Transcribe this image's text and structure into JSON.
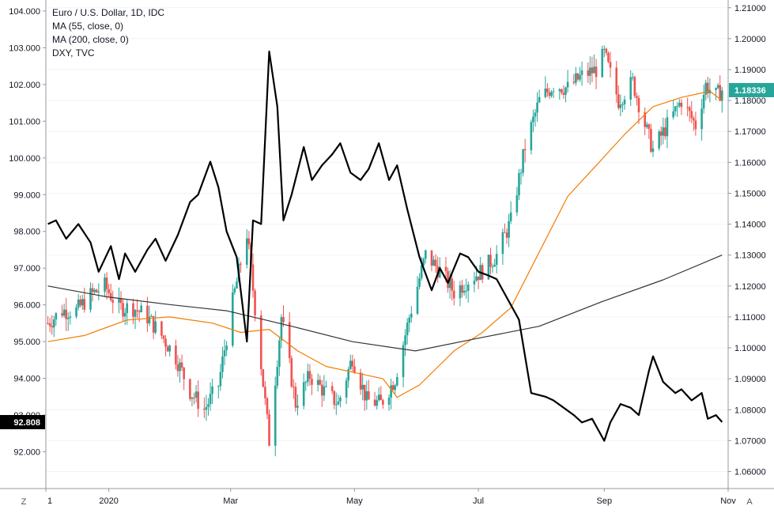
{
  "legend": {
    "main": "Euro / U.S. Dollar, 1D, IDC",
    "ma55": "MA (55, close, 0)",
    "ma200": "MA (200, close, 0)",
    "overlay": "DXY, TVC"
  },
  "corner_left": "Z",
  "corner_right": "A",
  "colors": {
    "up": "#26a69a",
    "down": "#ef5350",
    "ma55": "#f57c00",
    "ma200": "#333333",
    "dxy": "#000000",
    "eur_badge": "#26a69a",
    "dxy_badge": "#000000",
    "axis": "#131722",
    "grid": "#f0f3fa"
  },
  "chart_data": {
    "type": "line",
    "title": "Euro / U.S. Dollar, 1D, IDC",
    "x_axis": {
      "ticks": [
        "1",
        "2020",
        "Mar",
        "May",
        "Jul",
        "Sep",
        "Nov"
      ],
      "range": [
        "2019-12-01",
        "2020-11-01"
      ]
    },
    "left_axis": {
      "series": "DXY, TVC",
      "range": [
        91.0,
        104.3
      ],
      "ticks": [
        "92.000",
        "93.000",
        "94.000",
        "95.000",
        "96.000",
        "97.000",
        "98.000",
        "99.000",
        "100.000",
        "101.000",
        "102.000",
        "103.000",
        "104.000"
      ],
      "last_value_label": "92.808"
    },
    "right_axis": {
      "series": "Euro / U.S. Dollar, 1D, IDC",
      "range": [
        1.0545,
        1.2125
      ],
      "ticks": [
        "1.06000",
        "1.07000",
        "1.08000",
        "1.09000",
        "1.10000",
        "1.11000",
        "1.12000",
        "1.13000",
        "1.14000",
        "1.15000",
        "1.16000",
        "1.17000",
        "1.18000",
        "1.19000",
        "1.20000",
        "1.21000"
      ],
      "last_value_label": "1.18336"
    },
    "series": [
      {
        "name": "Euro / U.S. Dollar, 1D, IDC",
        "kind": "candlestick-close-path",
        "points": [
          [
            "2019-12-02",
            1.108
          ],
          [
            "2019-12-09",
            1.112
          ],
          [
            "2019-12-16",
            1.112
          ],
          [
            "2019-12-23",
            1.117
          ],
          [
            "2019-12-30",
            1.12
          ],
          [
            "2020-01-06",
            1.113
          ],
          [
            "2020-01-13",
            1.113
          ],
          [
            "2020-01-20",
            1.11
          ],
          [
            "2020-01-27",
            1.104
          ],
          [
            "2020-02-03",
            1.097
          ],
          [
            "2020-02-10",
            1.086
          ],
          [
            "2020-02-17",
            1.08
          ],
          [
            "2020-02-24",
            1.088
          ],
          [
            "2020-03-02",
            1.115
          ],
          [
            "2020-03-09",
            1.137
          ],
          [
            "2020-03-13",
            1.113
          ],
          [
            "2020-03-20",
            1.07
          ],
          [
            "2020-03-26",
            1.11
          ],
          [
            "2020-04-02",
            1.082
          ],
          [
            "2020-04-09",
            1.091
          ],
          [
            "2020-04-16",
            1.086
          ],
          [
            "2020-04-23",
            1.082
          ],
          [
            "2020-04-30",
            1.097
          ],
          [
            "2020-05-07",
            1.083
          ],
          [
            "2020-05-14",
            1.082
          ],
          [
            "2020-05-21",
            1.09
          ],
          [
            "2020-05-28",
            1.11
          ],
          [
            "2020-06-05",
            1.13
          ],
          [
            "2020-06-12",
            1.125
          ],
          [
            "2020-06-19",
            1.118
          ],
          [
            "2020-06-26",
            1.122
          ],
          [
            "2020-07-03",
            1.125
          ],
          [
            "2020-07-10",
            1.13
          ],
          [
            "2020-07-17",
            1.141
          ],
          [
            "2020-07-24",
            1.165
          ],
          [
            "2020-07-31",
            1.18
          ],
          [
            "2020-08-07",
            1.185
          ],
          [
            "2020-08-14",
            1.184
          ],
          [
            "2020-08-21",
            1.188
          ],
          [
            "2020-08-28",
            1.19
          ],
          [
            "2020-09-01",
            1.195
          ],
          [
            "2020-09-08",
            1.18
          ],
          [
            "2020-09-15",
            1.186
          ],
          [
            "2020-09-22",
            1.17
          ],
          [
            "2020-09-25",
            1.164
          ],
          [
            "2020-10-02",
            1.172
          ],
          [
            "2020-10-09",
            1.18
          ],
          [
            "2020-10-16",
            1.172
          ],
          [
            "2020-10-21",
            1.185
          ],
          [
            "2020-10-26",
            1.1815
          ],
          [
            "2020-10-29",
            1.1834
          ]
        ]
      },
      {
        "name": "MA (55, close, 0)",
        "points": [
          [
            "2019-12-02",
            1.102
          ],
          [
            "2019-12-20",
            1.104
          ],
          [
            "2020-01-10",
            1.109
          ],
          [
            "2020-01-31",
            1.11
          ],
          [
            "2020-02-21",
            1.108
          ],
          [
            "2020-03-06",
            1.105
          ],
          [
            "2020-03-20",
            1.106
          ],
          [
            "2020-04-03",
            1.099
          ],
          [
            "2020-04-17",
            1.094
          ],
          [
            "2020-05-01",
            1.092
          ],
          [
            "2020-05-15",
            1.09
          ],
          [
            "2020-05-22",
            1.084
          ],
          [
            "2020-06-02",
            1.088
          ],
          [
            "2020-06-19",
            1.099
          ],
          [
            "2020-07-03",
            1.105
          ],
          [
            "2020-07-17",
            1.113
          ],
          [
            "2020-07-31",
            1.131
          ],
          [
            "2020-08-14",
            1.149
          ],
          [
            "2020-08-28",
            1.159
          ],
          [
            "2020-09-11",
            1.169
          ],
          [
            "2020-09-25",
            1.178
          ],
          [
            "2020-10-09",
            1.181
          ],
          [
            "2020-10-23",
            1.183
          ],
          [
            "2020-10-29",
            1.18
          ]
        ]
      },
      {
        "name": "MA (200, close, 0)",
        "points": [
          [
            "2019-12-02",
            1.12
          ],
          [
            "2019-12-31",
            1.1165
          ],
          [
            "2020-01-31",
            1.114
          ],
          [
            "2020-02-28",
            1.112
          ],
          [
            "2020-03-31",
            1.107
          ],
          [
            "2020-04-30",
            1.102
          ],
          [
            "2020-05-31",
            1.099
          ],
          [
            "2020-06-30",
            1.103
          ],
          [
            "2020-07-31",
            1.107
          ],
          [
            "2020-08-31",
            1.115
          ],
          [
            "2020-09-30",
            1.122
          ],
          [
            "2020-10-29",
            1.13
          ]
        ]
      },
      {
        "name": "DXY, TVC",
        "points": [
          [
            "2019-12-02",
            98.2
          ],
          [
            "2019-12-06",
            98.3
          ],
          [
            "2019-12-11",
            97.8
          ],
          [
            "2019-12-17",
            98.2
          ],
          [
            "2019-12-23",
            97.7
          ],
          [
            "2019-12-27",
            96.9
          ],
          [
            "2020-01-02",
            97.6
          ],
          [
            "2020-01-06",
            96.7
          ],
          [
            "2020-01-09",
            97.4
          ],
          [
            "2020-01-14",
            96.9
          ],
          [
            "2020-01-20",
            97.5
          ],
          [
            "2020-01-24",
            97.8
          ],
          [
            "2020-01-29",
            97.2
          ],
          [
            "2020-02-04",
            97.9
          ],
          [
            "2020-02-10",
            98.8
          ],
          [
            "2020-02-14",
            99.0
          ],
          [
            "2020-02-20",
            99.9
          ],
          [
            "2020-02-24",
            99.2
          ],
          [
            "2020-02-28",
            98.0
          ],
          [
            "2020-03-04",
            97.3
          ],
          [
            "2020-03-09",
            95.0
          ],
          [
            "2020-03-12",
            98.3
          ],
          [
            "2020-03-16",
            98.2
          ],
          [
            "2020-03-20",
            102.9
          ],
          [
            "2020-03-24",
            101.4
          ],
          [
            "2020-03-27",
            98.3
          ],
          [
            "2020-03-31",
            99.0
          ],
          [
            "2020-04-06",
            100.3
          ],
          [
            "2020-04-10",
            99.4
          ],
          [
            "2020-04-15",
            99.8
          ],
          [
            "2020-04-20",
            100.1
          ],
          [
            "2020-04-24",
            100.4
          ],
          [
            "2020-04-29",
            99.6
          ],
          [
            "2020-05-04",
            99.4
          ],
          [
            "2020-05-08",
            99.7
          ],
          [
            "2020-05-13",
            100.4
          ],
          [
            "2020-05-18",
            99.4
          ],
          [
            "2020-05-22",
            99.8
          ],
          [
            "2020-05-27",
            98.6
          ],
          [
            "2020-06-02",
            97.3
          ],
          [
            "2020-06-08",
            96.4
          ],
          [
            "2020-06-12",
            97.0
          ],
          [
            "2020-06-16",
            96.6
          ],
          [
            "2020-06-22",
            97.4
          ],
          [
            "2020-06-26",
            97.3
          ],
          [
            "2020-07-01",
            96.9
          ],
          [
            "2020-07-06",
            96.8
          ],
          [
            "2020-07-10",
            96.7
          ],
          [
            "2020-07-15",
            96.2
          ],
          [
            "2020-07-21",
            95.6
          ],
          [
            "2020-07-27",
            93.6
          ],
          [
            "2020-08-03",
            93.5
          ],
          [
            "2020-08-07",
            93.4
          ],
          [
            "2020-08-12",
            93.2
          ],
          [
            "2020-08-17",
            93.0
          ],
          [
            "2020-08-21",
            92.8
          ],
          [
            "2020-08-26",
            92.9
          ],
          [
            "2020-09-01",
            92.3
          ],
          [
            "2020-09-04",
            92.8
          ],
          [
            "2020-09-09",
            93.3
          ],
          [
            "2020-09-14",
            93.2
          ],
          [
            "2020-09-18",
            93.0
          ],
          [
            "2020-09-23",
            94.2
          ],
          [
            "2020-09-25",
            94.6
          ],
          [
            "2020-09-30",
            93.9
          ],
          [
            "2020-10-06",
            93.6
          ],
          [
            "2020-10-09",
            93.7
          ],
          [
            "2020-10-14",
            93.4
          ],
          [
            "2020-10-19",
            93.6
          ],
          [
            "2020-10-22",
            92.9
          ],
          [
            "2020-10-26",
            93.0
          ],
          [
            "2020-10-29",
            92.81
          ]
        ]
      }
    ]
  }
}
